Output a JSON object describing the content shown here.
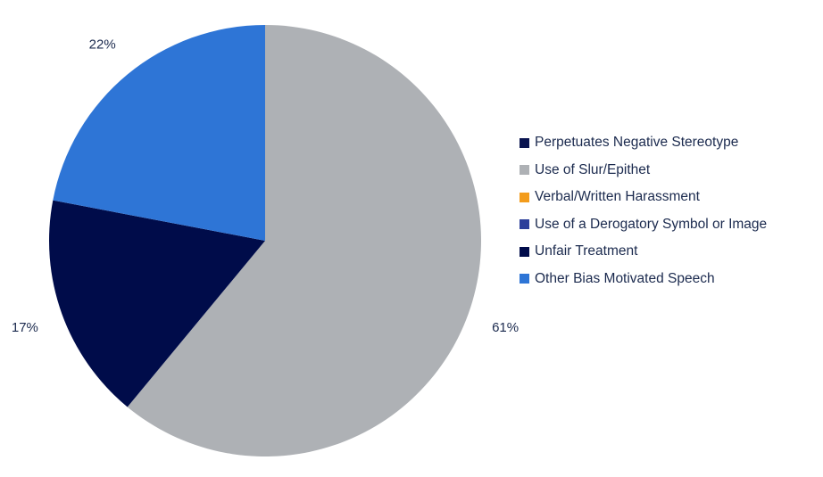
{
  "chart_data": {
    "type": "pie",
    "title": "",
    "start_angle_deg": 0,
    "direction": "clockwise",
    "legend_position": "right",
    "series": [
      {
        "name": "Perpetuates Negative Stereotype",
        "value": 0,
        "color": "#0a1450",
        "label": ""
      },
      {
        "name": "Use of Slur/Epithet",
        "value": 61,
        "color": "#aeb1b5",
        "label": "61%"
      },
      {
        "name": "Verbal/Written Harassment",
        "value": 0,
        "color": "#f39c1c",
        "label": ""
      },
      {
        "name": "Use of a Derogatory Symbol or Image",
        "value": 0,
        "color": "#2c3e9a",
        "label": ""
      },
      {
        "name": "Unfair Treatment",
        "value": 17,
        "color": "#000c4a",
        "label": "17%"
      },
      {
        "name": "Other Bias Motivated Speech",
        "value": 22,
        "color": "#2e75d6",
        "label": "22%"
      }
    ]
  }
}
